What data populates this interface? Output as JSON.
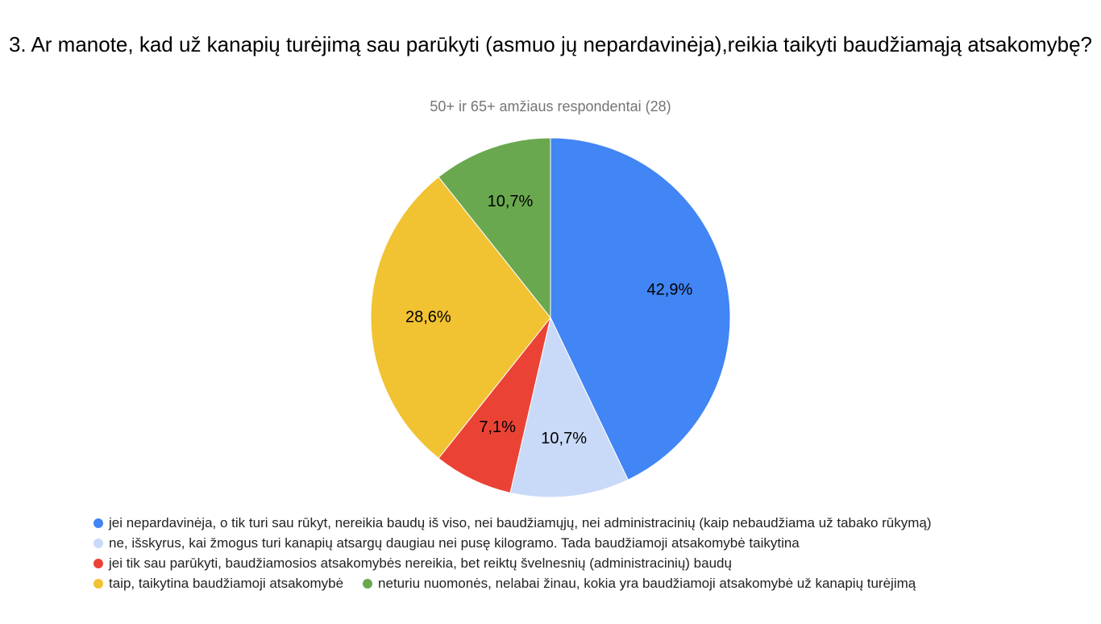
{
  "chart_data": {
    "type": "pie",
    "title": "3. Ar manote, kad už kanapių turėjimą sau parūkyti (asmuo jų nepardavinėja),reikia taikyti baudžiamąją atsakomybę?",
    "subtitle": "50+ ir 65+ amžiaus respondentai (28)",
    "slices": [
      {
        "name": "jei nepardavinėja, o tik turi sau rūkyt, nereikia baudų iš viso, nei baudžiamųjų, nei administracinių  (kaip nebaudžiama už tabako rūkymą)",
        "value": 42.9,
        "label": "42,9%",
        "color": "#4285f4"
      },
      {
        "name": "ne, išskyrus, kai žmogus turi kanapių atsargų daugiau nei pusę kilogramo. Tada baudžiamoji atsakomybė taikytina",
        "value": 10.7,
        "label": "10,7%",
        "color": "#c9daf8"
      },
      {
        "name": "jei tik sau parūkyti, baudžiamosios atsakomybės nereikia, bet reiktų švelnesnių (administracinių) baudų",
        "value": 7.1,
        "label": "7,1%",
        "color": "#ea4335"
      },
      {
        "name": "taip, taikytina baudžiamoji atsakomybė",
        "value": 28.6,
        "label": "28,6%",
        "color": "#f1c232"
      },
      {
        "name": "neturiu nuomonės, nelabai žinau, kokia yra baudžiamoji atsakomybė už kanapių turėjimą",
        "value": 10.7,
        "label": "10,7%",
        "color": "#6aa84f"
      }
    ],
    "legend_position": "bottom"
  }
}
